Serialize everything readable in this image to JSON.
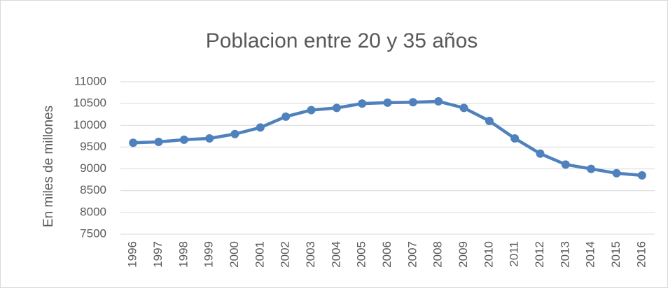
{
  "chart_data": {
    "type": "line",
    "title": "Poblacion entre 20 y 35 años",
    "y_label": "En miles de millones",
    "categories": [
      "1996",
      "1997",
      "1998",
      "1999",
      "2000",
      "2001",
      "2002",
      "2003",
      "2004",
      "2005",
      "2006",
      "2007",
      "2008",
      "2009",
      "2010",
      "2011",
      "2012",
      "2013",
      "2014",
      "2015",
      "2016"
    ],
    "series": [
      {
        "name": "Poblacion",
        "color": "#4f81bd",
        "values": [
          9600,
          9620,
          9670,
          9700,
          9800,
          9950,
          10200,
          10350,
          10400,
          10500,
          10520,
          10530,
          10550,
          10400,
          10100,
          9700,
          9350,
          9100,
          9000,
          8900,
          8850
        ]
      }
    ],
    "ylim": [
      7500,
      11000
    ],
    "yticks": [
      7500,
      8000,
      8500,
      9000,
      9500,
      10000,
      10500,
      11000
    ],
    "grid": true
  }
}
